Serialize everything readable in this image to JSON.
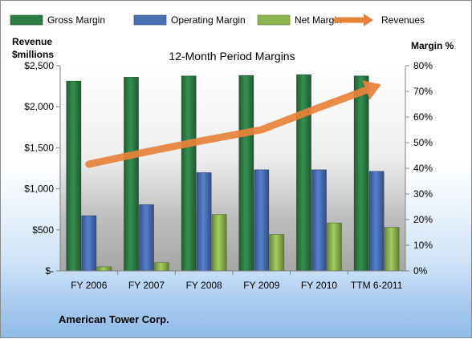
{
  "chart_data": {
    "type": "bar",
    "title": "12-Month Period Margins",
    "company": "American Tower Corp.",
    "categories": [
      "FY 2006",
      "FY 2007",
      "FY 2008",
      "FY 2009",
      "FY 2010",
      "TTM 6-2011"
    ],
    "series": [
      {
        "name": "Gross Margin",
        "axis": "right",
        "color": "#2e7d47",
        "values": [
          74,
          75.5,
          76,
          76.2,
          76.5,
          76
        ]
      },
      {
        "name": "Operating Margin",
        "axis": "right",
        "color": "#4a6fb5",
        "values": [
          21.5,
          25.8,
          38.3,
          39.4,
          39.4,
          38.8
        ]
      },
      {
        "name": "Net Margin",
        "axis": "right",
        "color": "#8db44e",
        "values": [
          1.6,
          3.2,
          22,
          14.2,
          18.7,
          17
        ]
      },
      {
        "name": "Revenues",
        "axis": "left",
        "type": "line",
        "color": "#e8823a",
        "values": [
          1300,
          1450,
          1590,
          1720,
          1990,
          2250
        ]
      }
    ],
    "left_axis": {
      "label_line1": "Revenue",
      "label_line2": "$millions",
      "range": [
        0,
        2500
      ],
      "ticks": [
        0,
        500,
        1000,
        1500,
        2000,
        2500
      ],
      "tick_labels": [
        "$-",
        "$500",
        "$1,000",
        "$1,500",
        "$2,000",
        "$2,500"
      ]
    },
    "right_axis": {
      "label": "Margin %",
      "range": [
        0,
        80
      ],
      "ticks": [
        0,
        10,
        20,
        30,
        40,
        50,
        60,
        70,
        80
      ],
      "tick_labels": [
        "0%",
        "10%",
        "20%",
        "30%",
        "40%",
        "50%",
        "60%",
        "70%",
        "80%"
      ]
    },
    "legend_position": "top",
    "grid": false
  }
}
